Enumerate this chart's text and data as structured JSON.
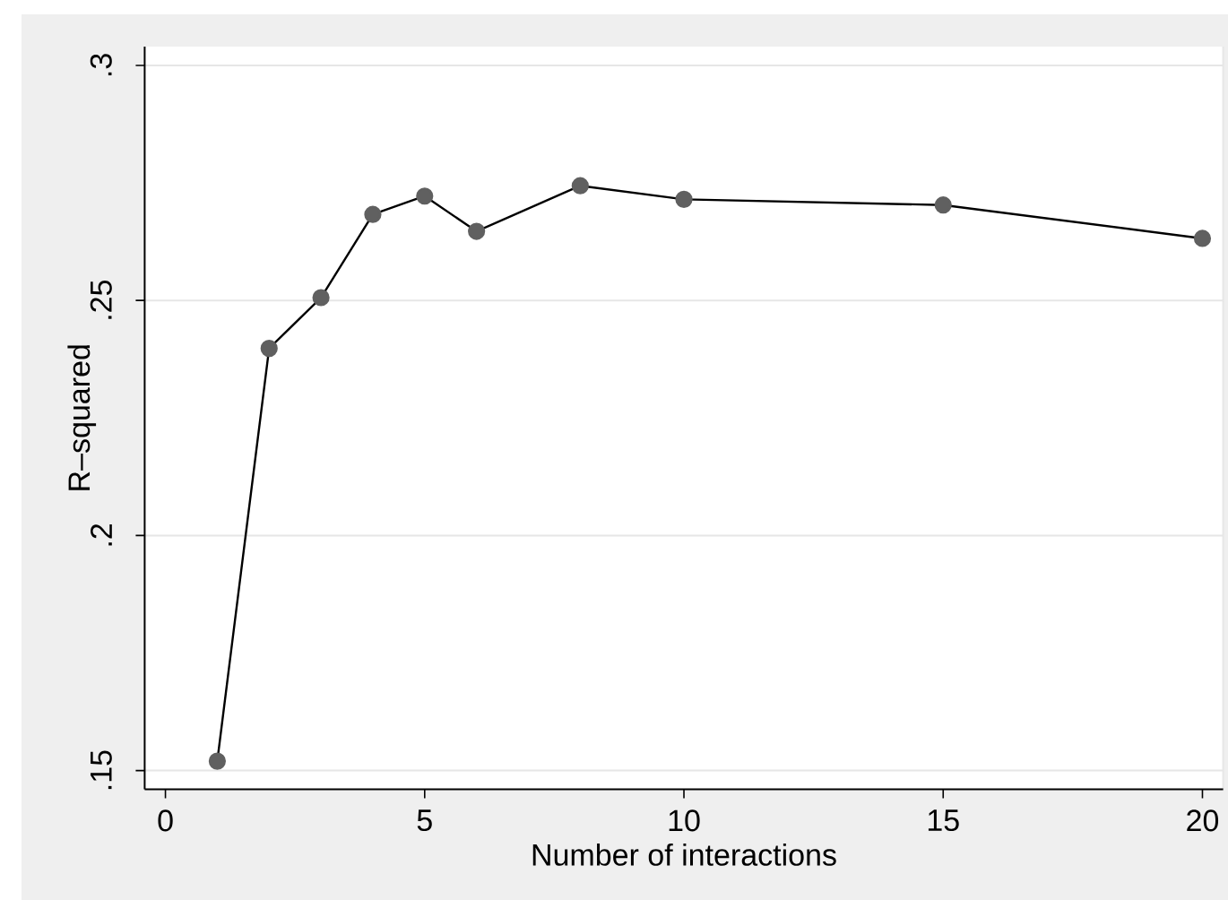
{
  "chart_data": {
    "type": "line",
    "xlabel": "Number of interactions",
    "ylabel": "R–squared",
    "x": [
      1,
      2,
      3,
      4,
      5,
      6,
      8,
      10,
      15,
      20
    ],
    "values": [
      0.152,
      0.2398,
      0.2506,
      0.2683,
      0.2722,
      0.2647,
      0.2744,
      0.2715,
      0.2703,
      0.2632
    ],
    "color": "#000000",
    "marker": "circle",
    "grid": "y",
    "xlim": [
      -0.4,
      20.4
    ],
    "xticks": [
      0,
      5,
      10,
      15,
      20
    ],
    "ylim": [
      0.146,
      0.304
    ],
    "yticks": [
      {
        "value": 0.15,
        "label": ".15"
      },
      {
        "value": 0.2,
        "label": ".2"
      },
      {
        "value": 0.25,
        "label": ".25"
      },
      {
        "value": 0.3,
        "label": ".3"
      }
    ]
  }
}
